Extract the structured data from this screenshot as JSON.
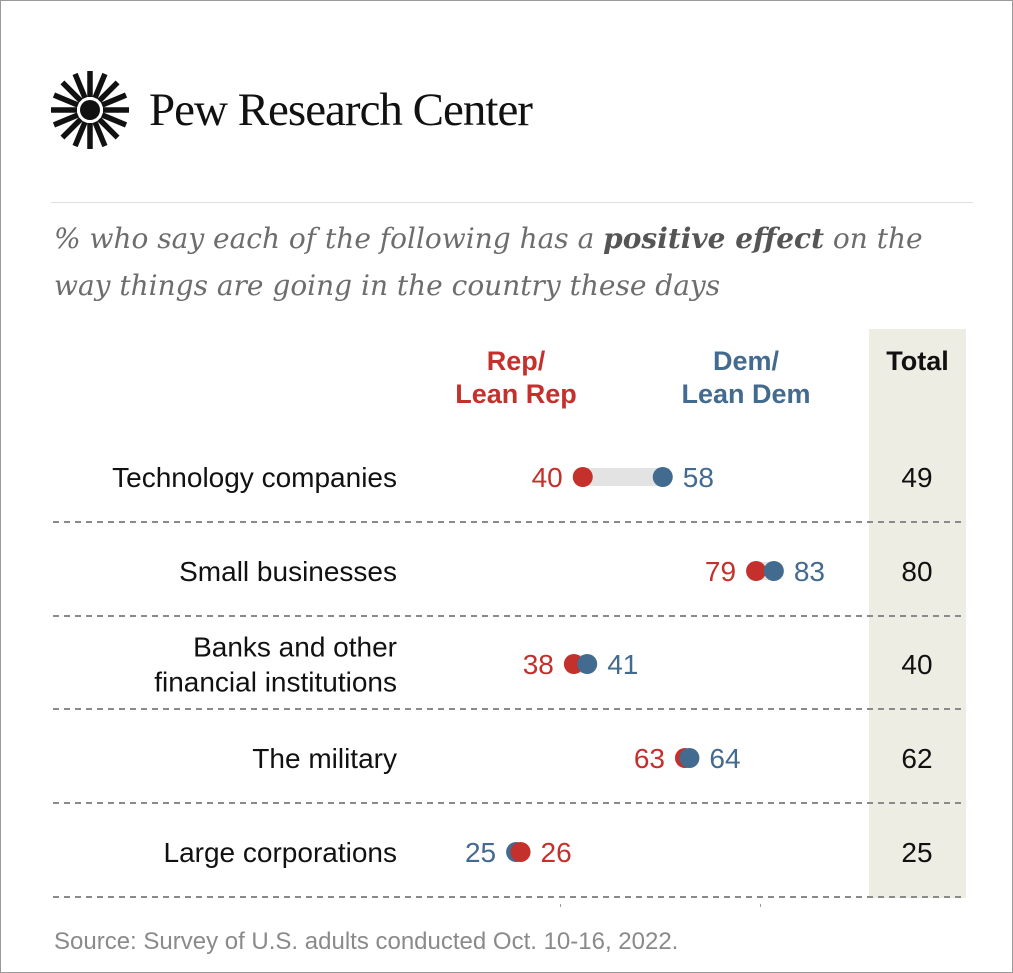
{
  "brand": {
    "name": "Pew Research Center"
  },
  "subtitle": {
    "pre": "% who say each of the following has a ",
    "bold": "positive effect",
    "post": " on the way things are going in the country these days"
  },
  "colors": {
    "rep": "#c4302b",
    "dem": "#436a8f",
    "range": "#e3e3e3",
    "total_bg": "#eeede3"
  },
  "chart_data": {
    "type": "dot",
    "title": "% who say each of the following has a positive effect on the way things are going in the country these days",
    "legend": {
      "rep": "Rep/ Lean Rep",
      "dem": "Dem/ Lean Dem",
      "total": "Total"
    },
    "rep_label_lines": [
      "Rep/",
      "Lean Rep"
    ],
    "dem_label_lines": [
      "Dem/",
      "Lean Dem"
    ],
    "total_label": "Total",
    "categories": [
      [
        "Technology companies"
      ],
      [
        "Small businesses"
      ],
      [
        "Banks and other",
        "financial institutions"
      ],
      [
        "The military"
      ],
      [
        "Large corporations"
      ]
    ],
    "series": [
      {
        "name": "Rep/Lean Rep",
        "values": [
          40,
          79,
          38,
          63,
          26
        ]
      },
      {
        "name": "Dem/Lean Dem",
        "values": [
          58,
          83,
          41,
          64,
          25
        ]
      }
    ],
    "total": [
      49,
      80,
      40,
      62,
      25
    ],
    "xlim": [
      0,
      100
    ]
  },
  "source": "Source: Survey of U.S. adults conducted Oct. 10-16, 2022."
}
